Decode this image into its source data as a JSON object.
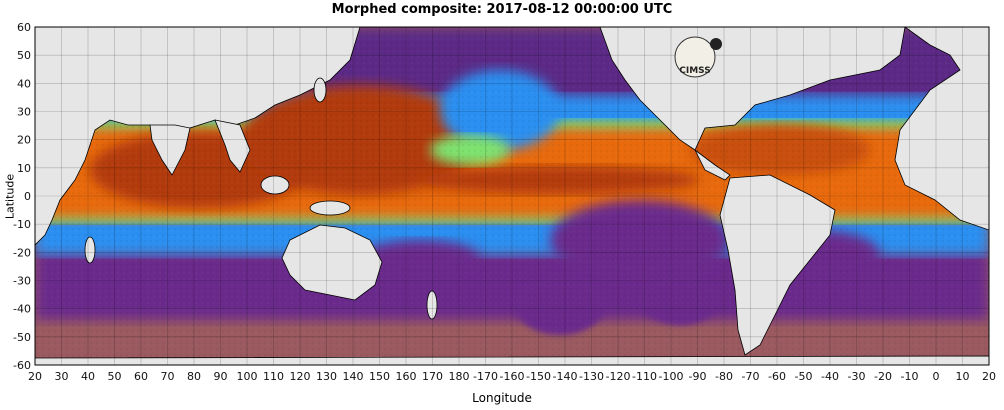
{
  "title": "Morphed composite: 2017-08-12 00:00:00 UTC",
  "xlabel": "Longitude",
  "ylabel": "Latitude",
  "logo_text": "CIMSS",
  "x_ticks": [
    "20",
    "30",
    "40",
    "50",
    "60",
    "70",
    "80",
    "90",
    "100",
    "110",
    "120",
    "130",
    "140",
    "150",
    "160",
    "170",
    "180",
    "-170",
    "-160",
    "-150",
    "-140",
    "-130",
    "-120",
    "-110",
    "-100",
    "-90",
    "-80",
    "-70",
    "-60",
    "-50",
    "-40",
    "-30",
    "-20",
    "-10",
    "0",
    "10",
    "20"
  ],
  "y_ticks": [
    "60",
    "50",
    "40",
    "30",
    "20",
    "10",
    "0",
    "-10",
    "-20",
    "-30",
    "-40",
    "-50",
    "-60"
  ],
  "colors": {
    "land": "#e6e6e6",
    "dry": "#5b2a86",
    "low": "#2b8ff0",
    "mid": "#7ee36f",
    "moist": "#e86a10",
    "very_moist": "#b23a0a",
    "south_ocean": "#9a5a60"
  }
}
